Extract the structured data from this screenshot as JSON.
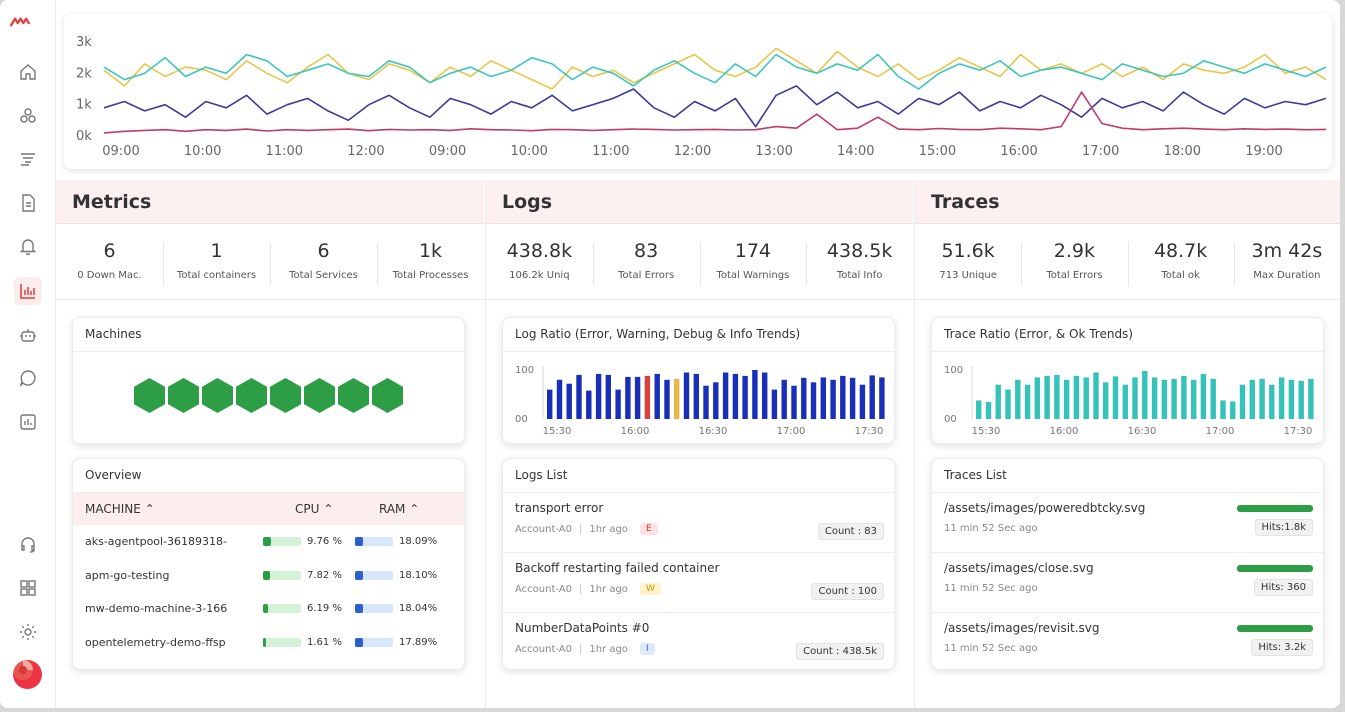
{
  "top_chart": {
    "y_ticks": [
      "3k",
      "2k",
      "1k",
      "0k"
    ],
    "x_ticks": [
      "09:00",
      "10:00",
      "11:00",
      "12:00",
      "09:00",
      "10:00",
      "11:00",
      "12:00",
      "13:00",
      "14:00",
      "15:00",
      "16:00",
      "17:00",
      "18:00",
      "19:00"
    ],
    "colors": [
      "#e8c64a",
      "#3cc6c0",
      "#3b3b9e",
      "#c23a6a"
    ]
  },
  "chart_data": [
    {
      "type": "line",
      "y_ticks": [
        "3k",
        "2k",
        "1k",
        "0k"
      ],
      "x_ticks": [
        "09:00",
        "10:00",
        "11:00",
        "12:00",
        "09:00",
        "10:00",
        "11:00",
        "12:00",
        "13:00",
        "14:00",
        "15:00",
        "16:00",
        "17:00",
        "18:00",
        "19:00"
      ],
      "ylim": [
        0,
        3000
      ],
      "series": [
        {
          "color": "#e8c64a",
          "values": [
            2100,
            1600,
            2300,
            1900,
            2200,
            2100,
            1800,
            2400,
            2000,
            1700,
            2200,
            2600,
            2000,
            1800,
            2300,
            2100,
            1700,
            2200,
            1900,
            2400,
            2100,
            1800,
            1500,
            2200,
            1900,
            2100,
            1700,
            2000,
            2300,
            2600,
            2100,
            1900,
            2200,
            2800,
            2400,
            2000,
            2700,
            2200,
            1900,
            2300,
            1800,
            2100,
            2500,
            2200,
            1900,
            2600,
            2100,
            2300,
            2000,
            2300,
            1900,
            2200,
            1800,
            2300,
            2100,
            2000,
            2200,
            2600,
            2000,
            2200,
            1800
          ]
        },
        {
          "color": "#3cc6c0",
          "values": [
            2200,
            1800,
            2000,
            2500,
            1900,
            2200,
            2000,
            2600,
            2400,
            1900,
            2100,
            2300,
            2000,
            1900,
            2400,
            2200,
            1700,
            2000,
            2200,
            1900,
            2100,
            2500,
            2300,
            1800,
            2200,
            2000,
            1600,
            2100,
            2400,
            2000,
            1700,
            2300,
            1900,
            2600,
            2200,
            2000,
            2300,
            2100,
            2600,
            1900,
            1500,
            2000,
            2300,
            2100,
            2400,
            1900,
            2100,
            2200,
            2000,
            1800,
            2300,
            2100,
            1900,
            2000,
            2400,
            2200,
            2000,
            2300,
            2100,
            1900,
            2200
          ]
        },
        {
          "color": "#3b3b9e",
          "values": [
            900,
            1100,
            800,
            1000,
            600,
            1100,
            900,
            1300,
            700,
            1000,
            1200,
            800,
            500,
            1000,
            1300,
            900,
            600,
            1200,
            1000,
            700,
            1100,
            900,
            1300,
            800,
            1000,
            1200,
            1500,
            900,
            600,
            1100,
            800,
            1200,
            300,
            1300,
            1600,
            1000,
            1400,
            900,
            1100,
            700,
            1200,
            1000,
            1400,
            800,
            1100,
            900,
            1300,
            1000,
            600,
            1200,
            900,
            1100,
            800,
            1400,
            1000,
            700,
            1200,
            900,
            1100,
            1000,
            1200
          ]
        },
        {
          "color": "#c23a6a",
          "values": [
            100,
            150,
            180,
            200,
            150,
            200,
            180,
            220,
            160,
            200,
            180,
            200,
            220,
            170,
            210,
            190,
            200,
            180,
            230,
            200,
            190,
            170,
            210,
            200,
            180,
            200,
            220,
            210,
            190,
            200,
            210,
            190,
            200,
            300,
            250,
            700,
            200,
            250,
            600,
            220,
            200,
            240,
            210,
            200,
            250,
            230,
            200,
            300,
            1400,
            400,
            250,
            200,
            230,
            250,
            220,
            200,
            230,
            210,
            220,
            200,
            210
          ]
        }
      ]
    },
    {
      "type": "bar",
      "y_ticks": [
        "100",
        "00"
      ],
      "x_ticks": [
        "15:30",
        "16:00",
        "16:30",
        "17:00",
        "17:30"
      ],
      "ylim": [
        0,
        100
      ],
      "values": [
        60,
        80,
        72,
        90,
        58,
        92,
        90,
        60,
        86,
        86,
        88,
        92,
        80,
        82,
        95,
        92,
        68,
        75,
        95,
        92,
        88,
        100,
        95,
        60,
        80,
        68,
        84,
        75,
        85,
        80,
        88,
        84,
        70,
        89,
        85
      ],
      "colors_override": {
        "10": "#d94040",
        "13": "#e8b84a"
      },
      "color": "#1a2fb8"
    },
    {
      "type": "bar",
      "y_ticks": [
        "100",
        "00"
      ],
      "x_ticks": [
        "15:30",
        "16:00",
        "16:30",
        "17:00",
        "17:30"
      ],
      "ylim": [
        0,
        100
      ],
      "values": [
        38,
        35,
        70,
        60,
        80,
        70,
        85,
        88,
        90,
        80,
        88,
        85,
        95,
        75,
        87,
        70,
        85,
        98,
        85,
        80,
        82,
        88,
        80,
        92,
        82,
        38,
        36,
        70,
        80,
        82,
        70,
        85,
        80,
        78,
        82
      ],
      "color": "#35c2b8"
    }
  ],
  "sidebar": {
    "items": [
      {
        "name": "home-icon"
      },
      {
        "name": "infrastructure-icon"
      },
      {
        "name": "logs-filter-icon"
      },
      {
        "name": "document-icon"
      },
      {
        "name": "bell-icon"
      },
      {
        "name": "dashboard-chart-icon"
      },
      {
        "name": "robot-icon"
      },
      {
        "name": "chat-icon"
      },
      {
        "name": "user-report-icon"
      },
      {
        "name": "headset-icon"
      },
      {
        "name": "apps-grid-icon"
      },
      {
        "name": "gear-icon"
      }
    ],
    "active_index": 5,
    "brand_color": "#e33b3b"
  },
  "metrics": {
    "title": "Metrics",
    "stats": [
      {
        "value": "6",
        "label": "0 Down Mac."
      },
      {
        "value": "1",
        "label": "Total containers"
      },
      {
        "value": "6",
        "label": "Total Services"
      },
      {
        "value": "1k",
        "label": "Total Processes"
      }
    ],
    "machines": {
      "title": "Machines",
      "count": 8,
      "color": "#2e9e46"
    },
    "overview": {
      "title": "Overview",
      "headers": {
        "machine": "MACHINE",
        "cpu": "CPU",
        "ram": "RAM",
        "sort_icon": "⌃"
      },
      "rows": [
        {
          "name": "aks-agentpool-36189318-",
          "cpu": "9.76 %",
          "ram": "18.09%",
          "cpu_pct": 9.76,
          "ram_pct": 18.09
        },
        {
          "name": "apm-go-testing",
          "cpu": "7.82 %",
          "ram": "18.10%",
          "cpu_pct": 7.82,
          "ram_pct": 18.1
        },
        {
          "name": "mw-demo-machine-3-166",
          "cpu": "6.19 %",
          "ram": "18.04%",
          "cpu_pct": 6.19,
          "ram_pct": 18.04
        },
        {
          "name": "opentelemetry-demo-ffsp",
          "cpu": "1.61 %",
          "ram": "17.89%",
          "cpu_pct": 1.61,
          "ram_pct": 17.89
        }
      ]
    }
  },
  "logs": {
    "title": "Logs",
    "stats": [
      {
        "value": "438.8k",
        "label": "106.2k Uniq"
      },
      {
        "value": "83",
        "label": "Total Errors"
      },
      {
        "value": "174",
        "label": "Total Warnings"
      },
      {
        "value": "438.5k",
        "label": "Total Info"
      }
    ],
    "ratio_title": "Log Ratio (Error, Warning, Debug & Info Trends)",
    "list_title": "Logs List",
    "items": [
      {
        "title": "transport error",
        "account": "Account-A0",
        "time": "1hr ago",
        "tag": "E",
        "tag_class": "tag-e",
        "count": "Count : 83"
      },
      {
        "title": "Backoff restarting failed container",
        "account": "Account-A0",
        "time": "1hr ago",
        "tag": "W",
        "tag_class": "tag-w",
        "count": "Count : 100"
      },
      {
        "title": "NumberDataPoints #0",
        "account": "Account-A0",
        "time": "1hr ago",
        "tag": "I",
        "tag_class": "tag-i",
        "count": "Count : 438.5k"
      }
    ]
  },
  "traces": {
    "title": "Traces",
    "stats": [
      {
        "value": "51.6k",
        "label": "713 Unique"
      },
      {
        "value": "2.9k",
        "label": "Total Errors"
      },
      {
        "value": "48.7k",
        "label": "Total ok"
      },
      {
        "value": "3m 42s",
        "label": "Max Duration"
      }
    ],
    "ratio_title": "Trace Ratio (Error, & Ok Trends)",
    "list_title": "Traces List",
    "items": [
      {
        "title": "/assets/images/poweredbtcky.svg",
        "time": "11 min 52 Sec ago",
        "hits": "Hits:1.8k"
      },
      {
        "title": "/assets/images/close.svg",
        "time": "11 min 52 Sec ago",
        "hits": "Hits: 360"
      },
      {
        "title": "/assets/images/revisit.svg",
        "time": "11 min 52 Sec ago",
        "hits": "Hits: 3.2k"
      }
    ]
  }
}
